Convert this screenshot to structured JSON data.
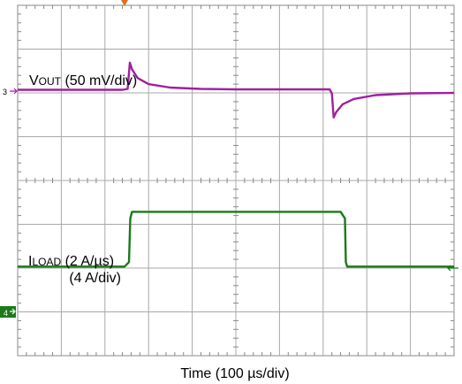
{
  "chart_data": {
    "type": "line",
    "grid": true,
    "x_axis": {
      "label": "Time (100 µs/div)",
      "divisions": 10
    },
    "y_axis": {
      "divisions": 8
    },
    "trigger_marker_color": "#e07020",
    "channels": [
      {
        "id": "3",
        "marker_text": "3",
        "color": "#a020a0",
        "label_main": "V",
        "label_sub": "OUT",
        "label_rest": " (50 mV/div)",
        "scale_label": "50 mV/div",
        "points_div": [
          [
            0,
            0.03
          ],
          [
            2.4,
            0.03
          ],
          [
            2.52,
            0.05
          ],
          [
            2.57,
            0.65
          ],
          [
            2.62,
            0.5
          ],
          [
            2.75,
            0.3
          ],
          [
            3.0,
            0.16
          ],
          [
            3.5,
            0.08
          ],
          [
            4.2,
            0.05
          ],
          [
            5.0,
            0.04
          ],
          [
            6.0,
            0.04
          ],
          [
            7.15,
            0.04
          ],
          [
            7.2,
            -0.05
          ],
          [
            7.24,
            -0.6
          ],
          [
            7.3,
            -0.48
          ],
          [
            7.45,
            -0.3
          ],
          [
            7.7,
            -0.18
          ],
          [
            8.2,
            -0.09
          ],
          [
            9.0,
            -0.05
          ],
          [
            10.0,
            -0.04
          ]
        ]
      },
      {
        "id": "4",
        "marker_text": "4",
        "color": "#1a7a1a",
        "label_main": "I",
        "label_sub": "LOAD",
        "label_rest": " (2 A/µs)",
        "label_line2": "(4 A/div)",
        "scale_label": "4 A/div",
        "points_div": [
          [
            0,
            0.5
          ],
          [
            2.45,
            0.5
          ],
          [
            2.55,
            0.6
          ],
          [
            2.58,
            1.6
          ],
          [
            2.62,
            1.75
          ],
          [
            5.0,
            1.75
          ],
          [
            7.4,
            1.75
          ],
          [
            7.5,
            1.6
          ],
          [
            7.52,
            0.6
          ],
          [
            7.55,
            0.5
          ],
          [
            10.0,
            0.5
          ]
        ]
      }
    ]
  }
}
